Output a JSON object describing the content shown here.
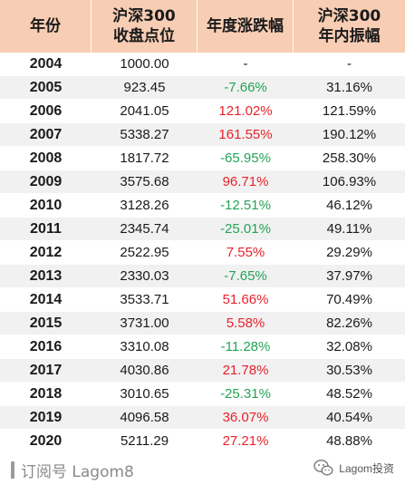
{
  "table": {
    "headers": [
      [
        "年份"
      ],
      [
        "沪深300",
        "收盘点位"
      ],
      [
        "年度涨跌幅"
      ],
      [
        "沪深300",
        "年内振幅"
      ]
    ],
    "rows": [
      {
        "year": "2004",
        "close": "1000.00",
        "change": "-",
        "dir": "flat",
        "amplitude": "-"
      },
      {
        "year": "2005",
        "close": "923.45",
        "change": "-7.66%",
        "dir": "down",
        "amplitude": "31.16%"
      },
      {
        "year": "2006",
        "close": "2041.05",
        "change": "121.02%",
        "dir": "up",
        "amplitude": "121.59%"
      },
      {
        "year": "2007",
        "close": "5338.27",
        "change": "161.55%",
        "dir": "up",
        "amplitude": "190.12%"
      },
      {
        "year": "2008",
        "close": "1817.72",
        "change": "-65.95%",
        "dir": "down",
        "amplitude": "258.30%"
      },
      {
        "year": "2009",
        "close": "3575.68",
        "change": "96.71%",
        "dir": "up",
        "amplitude": "106.93%"
      },
      {
        "year": "2010",
        "close": "3128.26",
        "change": "-12.51%",
        "dir": "down",
        "amplitude": "46.12%"
      },
      {
        "year": "2011",
        "close": "2345.74",
        "change": "-25.01%",
        "dir": "down",
        "amplitude": "49.11%"
      },
      {
        "year": "2012",
        "close": "2522.95",
        "change": "7.55%",
        "dir": "up",
        "amplitude": "29.29%"
      },
      {
        "year": "2013",
        "close": "2330.03",
        "change": "-7.65%",
        "dir": "down",
        "amplitude": "37.97%"
      },
      {
        "year": "2014",
        "close": "3533.71",
        "change": "51.66%",
        "dir": "up",
        "amplitude": "70.49%"
      },
      {
        "year": "2015",
        "close": "3731.00",
        "change": "5.58%",
        "dir": "up",
        "amplitude": "82.26%"
      },
      {
        "year": "2016",
        "close": "3310.08",
        "change": "-11.28%",
        "dir": "down",
        "amplitude": "32.08%"
      },
      {
        "year": "2017",
        "close": "4030.86",
        "change": "21.78%",
        "dir": "up",
        "amplitude": "30.53%"
      },
      {
        "year": "2018",
        "close": "3010.65",
        "change": "-25.31%",
        "dir": "down",
        "amplitude": "48.52%"
      },
      {
        "year": "2019",
        "close": "4096.58",
        "change": "36.07%",
        "dir": "up",
        "amplitude": "40.54%"
      },
      {
        "year": "2020",
        "close": "5211.29",
        "change": "27.21%",
        "dir": "up",
        "amplitude": "48.88%"
      }
    ]
  },
  "footer": {
    "subscribe_text": "订阅号 Lagom8",
    "watermark_text": "Lagom投资",
    "watermark_icon": "wechat-logo-icon"
  },
  "colors": {
    "header_bg": "#f7cdb4",
    "row_alt_bg": "#f1f1f1",
    "up": "#e8222b",
    "down": "#23a455"
  }
}
